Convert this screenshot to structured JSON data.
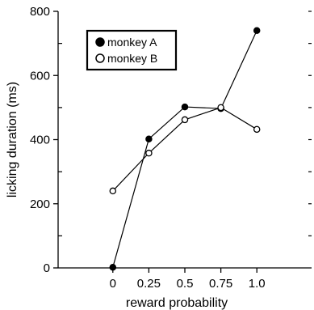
{
  "chart_data": {
    "type": "line",
    "xlabel": "reward probability",
    "ylabel": "licking duration (ms)",
    "x": [
      0,
      0.25,
      0.5,
      0.75,
      1.0
    ],
    "x_tick_labels": [
      "0",
      "0.25",
      "0.5",
      "0.75",
      "1.0"
    ],
    "xlim": [
      -0.38,
      1.38
    ],
    "ylim": [
      0,
      800
    ],
    "y_ticks": [
      0,
      200,
      400,
      600,
      800
    ],
    "y_minor_ticks": [
      100,
      300,
      500,
      700
    ],
    "grid": false,
    "legend_position": "top-left",
    "series": [
      {
        "name": "monkey A",
        "marker": "filled-circle",
        "color": "#000000",
        "values": [
          2,
          402,
          502,
          497,
          740
        ]
      },
      {
        "name": "monkey B",
        "marker": "open-circle",
        "color": "#000000",
        "values": [
          240,
          358,
          462,
          500,
          432
        ]
      }
    ]
  }
}
